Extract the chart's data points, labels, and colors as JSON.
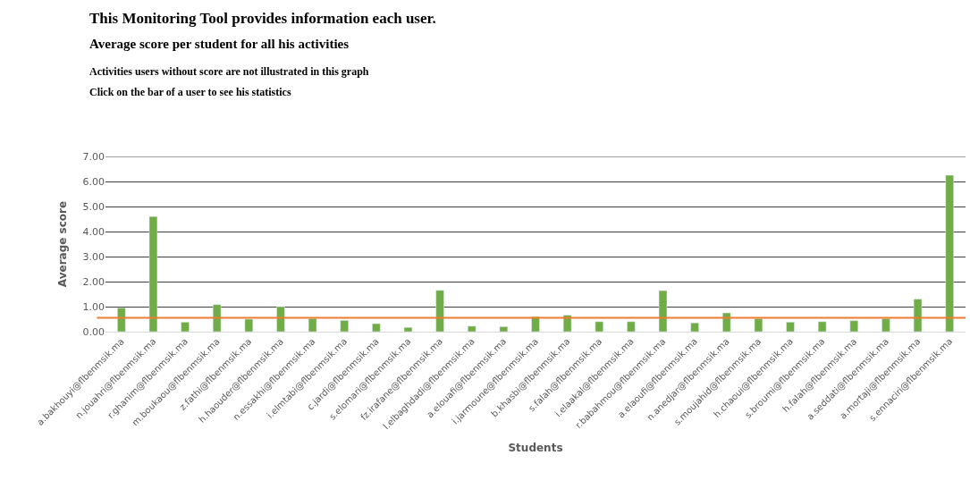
{
  "chart_data": {
    "type": "bar",
    "title": "This Monitoring Tool provides information each user.",
    "subtitle": "Average score per student for all his activities",
    "annotations": [
      "Activities users without score are not illustrated in this graph",
      "Click on the bar of a user to see his statistics"
    ],
    "xlabel": "Students",
    "ylabel": "Average score",
    "categories": [
      "a.bakhouyi@flbenmsik.ma",
      "n.jouahri@flbenmsik.ma",
      "r.ghanim@flbenmsik.ma",
      "m.boukaou@flbenmsik.ma",
      "z.fathi@flbenmsik.ma",
      "h.haouder@flbenmsik.ma",
      "n.essakhi@flbenmsik.ma",
      "i.elmtabi@flbenmsik.ma",
      "c.jardi@flbenmsik.ma",
      "s.elomari@flbenmsik.ma",
      "fz.irafane@flbenmsik.ma",
      "l.elbaghdadi@flbenmsik.ma",
      "a.elouafi@flbenmsik.ma",
      "i.jarmoune@flbenmsik.ma",
      "b.khasbi@flbenmsik.ma",
      "s.falah@flbenmsik.ma",
      "i.elaakal@flbenmsik.ma",
      "r.babahmou@flbenmsik.ma",
      "a.elaoufi@flbenmsik.ma",
      "n.anedjar@flbenmsik.ma",
      "s.moujahid@flbenmsik.ma",
      "h.chaoui@flbenmsik.ma",
      "s.broumi@flbenmsik.ma",
      "h.falah@flbenmsik.ma",
      "a.seddati@flbenmsik.ma",
      "a.mortaji@flbenmsik.ma",
      "s.ennaciri@flbenmsik.ma"
    ],
    "values": [
      0.95,
      4.6,
      0.38,
      1.08,
      0.5,
      1.0,
      0.52,
      0.45,
      0.32,
      0.17,
      1.65,
      0.22,
      0.2,
      0.6,
      0.66,
      0.4,
      0.4,
      1.64,
      0.35,
      0.75,
      0.52,
      0.38,
      0.4,
      0.44,
      0.52,
      1.3,
      6.25
    ],
    "color": "#70ad47",
    "ylim": [
      0,
      7
    ],
    "yticks": [
      {
        "value": 0,
        "label": "0.00"
      },
      {
        "value": 1,
        "label": "1.00"
      },
      {
        "value": 2,
        "label": "2.00"
      },
      {
        "value": 3,
        "label": "3.00"
      },
      {
        "value": 4,
        "label": "4.00"
      },
      {
        "value": 5,
        "label": "5.00"
      },
      {
        "value": 6,
        "label": "6.00"
      },
      {
        "value": 7,
        "label": "7.00"
      }
    ],
    "ref_lines": [
      {
        "axis": "y",
        "value": 0.55,
        "color": "#ed7d31"
      }
    ],
    "grid": "y"
  }
}
